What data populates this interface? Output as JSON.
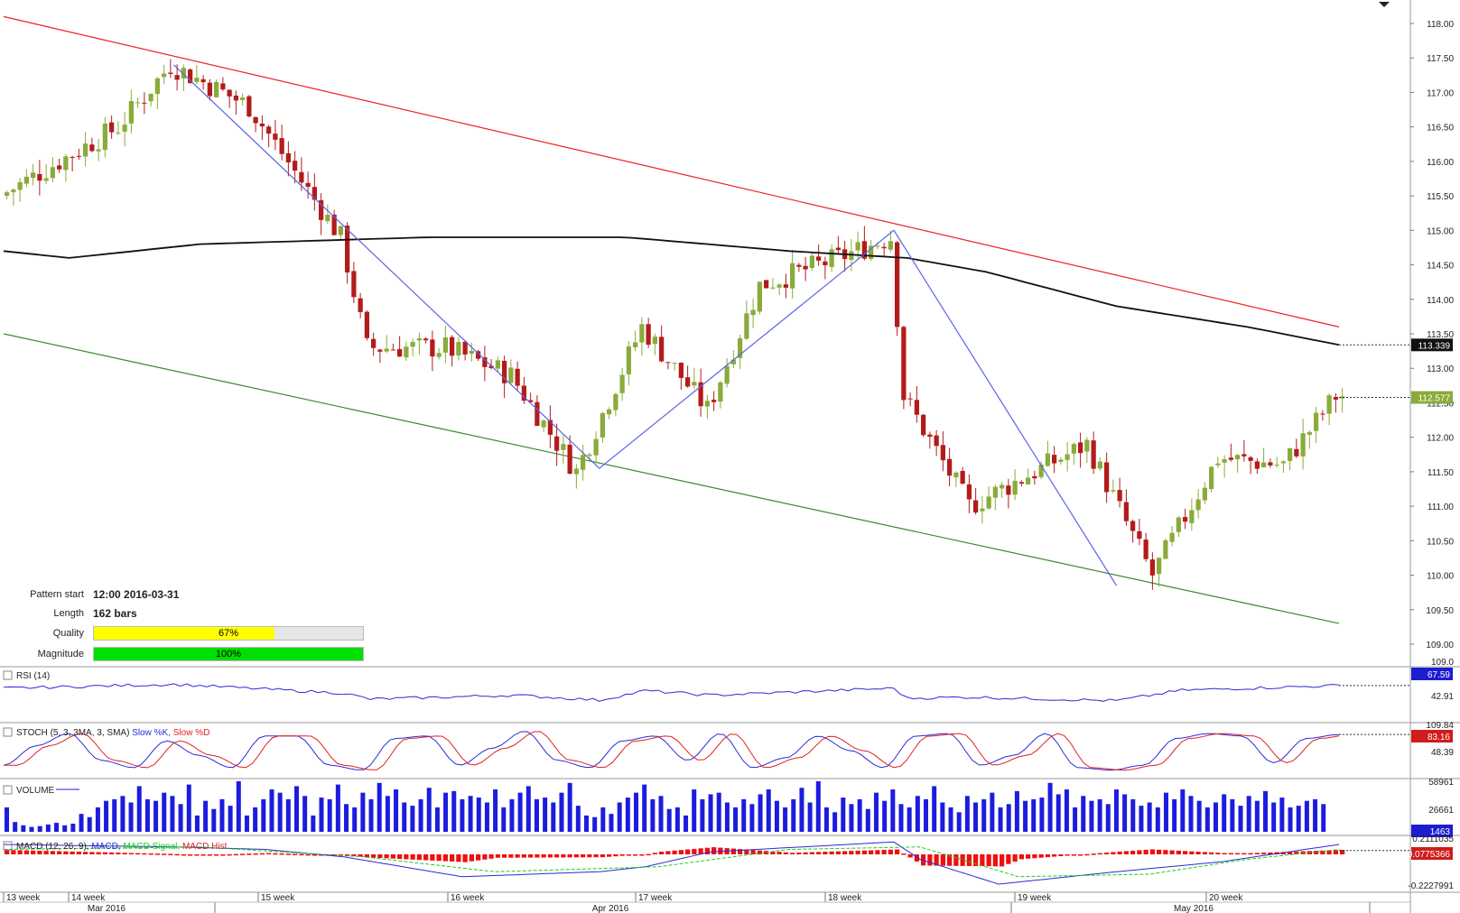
{
  "chart_data": {
    "type": "candlestick",
    "title": "",
    "main_panel": {
      "y_range": [
        109.0,
        118.2
      ],
      "y_ticks": [
        "118.00",
        "117.50",
        "117.00",
        "116.50",
        "116.00",
        "115.50",
        "115.00",
        "114.50",
        "114.00",
        "113.50",
        "113.00",
        "112.50",
        "112.00",
        "111.50",
        "111.00",
        "110.50",
        "110.00",
        "109.50",
        "109.00"
      ],
      "moving_average_last": "113.339",
      "last_price": "112.577",
      "colors": {
        "up": "#8aab3a",
        "down": "#b31b1b",
        "ma": "#111111",
        "resistance": "#ee2222",
        "support": "#3b8a2e",
        "pattern": "#5a64e6",
        "price_badge": "#8aab3a"
      },
      "price_path": [
        [
          0,
          115.5
        ],
        [
          18,
          116.5
        ],
        [
          26,
          117.4
        ],
        [
          38,
          116.8
        ],
        [
          52,
          114.9
        ],
        [
          56,
          113.3
        ],
        [
          68,
          113.3
        ],
        [
          78,
          112.9
        ],
        [
          88,
          111.5
        ],
        [
          98,
          113.6
        ],
        [
          108,
          112.4
        ],
        [
          116,
          114.2
        ],
        [
          128,
          114.6
        ],
        [
          136,
          114.9
        ],
        [
          138,
          112.6
        ],
        [
          148,
          111.0
        ],
        [
          156,
          111.4
        ],
        [
          166,
          111.9
        ],
        [
          176,
          110.0
        ],
        [
          186,
          111.7
        ],
        [
          196,
          111.6
        ],
        [
          204,
          112.6
        ]
      ],
      "moving_average": [
        [
          0,
          114.7
        ],
        [
          10,
          114.6
        ],
        [
          30,
          114.8
        ],
        [
          65,
          114.9
        ],
        [
          95,
          114.9
        ],
        [
          120,
          114.7
        ],
        [
          138,
          114.6
        ],
        [
          150,
          114.4
        ],
        [
          170,
          113.9
        ],
        [
          190,
          113.6
        ],
        [
          204,
          113.34
        ]
      ],
      "resistance_line": [
        [
          0,
          118.1
        ],
        [
          204,
          113.6
        ]
      ],
      "support_line": [
        [
          0,
          113.5
        ],
        [
          204,
          109.3
        ]
      ],
      "pattern_zigzag": [
        [
          26,
          117.4
        ],
        [
          91,
          111.55
        ],
        [
          136,
          115.0
        ],
        [
          170,
          109.85
        ]
      ]
    },
    "pattern_info": {
      "pattern_start_label": "Pattern start",
      "pattern_start_value": "12:00 2016-03-31",
      "length_label": "Length",
      "length_value": "162 bars",
      "quality_label": "Quality",
      "quality_value": "67%",
      "quality_fraction": 0.67,
      "magnitude_label": "Magnitude",
      "magnitude_value": "100%",
      "magnitude_fraction": 1.0
    },
    "rsi_panel": {
      "label": "RSI (14)",
      "ticks": [
        "109.0",
        "42.91"
      ],
      "last": "67.59",
      "values": [
        [
          0,
          62
        ],
        [
          26,
          70
        ],
        [
          52,
          52
        ],
        [
          56,
          40
        ],
        [
          78,
          48
        ],
        [
          91,
          38
        ],
        [
          98,
          57
        ],
        [
          108,
          48
        ],
        [
          136,
          62
        ],
        [
          138,
          42
        ],
        [
          148,
          44
        ],
        [
          170,
          37
        ],
        [
          180,
          58
        ],
        [
          204,
          67.59
        ]
      ]
    },
    "stoch_panel": {
      "label": "STOCH (5, 3, 3MA, 3, SMA)",
      "legend_k": "Slow %K",
      "legend_d": "Slow %D",
      "ticks": [
        "109.84",
        "48.39"
      ],
      "last": "83.16",
      "k_values": [
        20,
        60,
        85,
        30,
        15,
        70,
        40,
        15,
        80,
        80,
        20,
        10,
        75,
        80,
        20,
        55,
        90,
        30,
        15,
        70,
        80,
        30,
        85,
        15,
        35,
        80,
        50,
        15,
        80,
        85,
        20,
        40,
        85,
        15,
        10,
        20,
        75,
        85,
        80,
        25,
        75,
        83
      ]
    },
    "volume_panel": {
      "label": "VOLUME",
      "ticks": [
        "58961",
        "26661"
      ],
      "last": "1463",
      "values": [
        30,
        12,
        8,
        6,
        7,
        9,
        11,
        8,
        10,
        22,
        18,
        30,
        38,
        40,
        44,
        36,
        56,
        40,
        38,
        48,
        44,
        34,
        58,
        20,
        38,
        28,
        40,
        32,
        62,
        20,
        30,
        40,
        52,
        48,
        40,
        56,
        44,
        20,
        42,
        40,
        58,
        34,
        30,
        48,
        40,
        60,
        44,
        52,
        36,
        32,
        40,
        54,
        30,
        48,
        50,
        40,
        44,
        42,
        36,
        52,
        30,
        40,
        48,
        56,
        40,
        42,
        36,
        48,
        60,
        32,
        20,
        18,
        30,
        22,
        36,
        42,
        48,
        58,
        40,
        44,
        28,
        30,
        20,
        52,
        40,
        46,
        48,
        36,
        30,
        40,
        34,
        46,
        52,
        38,
        30,
        40,
        54,
        36,
        62,
        30,
        24,
        42,
        34,
        40,
        28,
        48,
        38,
        52,
        34,
        30,
        44,
        40,
        56,
        36,
        30,
        24,
        44,
        36,
        40,
        48,
        30,
        34,
        50,
        38,
        40,
        42,
        60,
        46,
        52,
        30,
        44,
        38,
        40,
        34,
        52,
        46,
        40,
        32,
        36,
        30,
        48,
        40,
        52,
        44,
        38,
        30,
        36,
        46,
        40,
        32,
        44,
        38,
        50,
        36,
        42,
        30,
        32,
        38,
        40,
        34
      ]
    },
    "macd_panel": {
      "label": "MACD (12, 26, 9)",
      "legend_macd": "MACD",
      "legend_signal": "MACD Signal",
      "legend_hist": "MACD Hist",
      "ticks": [
        "0.2111035",
        "-0.2227991"
      ],
      "last": "0.0775366",
      "macd": [
        [
          0,
          0.2
        ],
        [
          26,
          0.15
        ],
        [
          40,
          0.1
        ],
        [
          52,
          -0.05
        ],
        [
          70,
          -0.45
        ],
        [
          91,
          -0.35
        ],
        [
          98,
          -0.25
        ],
        [
          108,
          0.05
        ],
        [
          136,
          0.25
        ],
        [
          140,
          -0.1
        ],
        [
          152,
          -0.6
        ],
        [
          170,
          -0.35
        ],
        [
          186,
          -0.15
        ],
        [
          204,
          0.2
        ]
      ],
      "signal": [
        [
          0,
          0.1
        ],
        [
          30,
          0.15
        ],
        [
          55,
          -0.05
        ],
        [
          75,
          -0.35
        ],
        [
          100,
          -0.25
        ],
        [
          120,
          0.1
        ],
        [
          140,
          0.15
        ],
        [
          155,
          -0.45
        ],
        [
          175,
          -0.4
        ],
        [
          190,
          -0.1
        ],
        [
          204,
          0.1
        ]
      ]
    },
    "x_axis": {
      "week_labels": [
        "13 week",
        "14 week",
        "15 week",
        "16 week",
        "17 week",
        "18 week",
        "19 week",
        "20 week"
      ],
      "month_labels": [
        "Mar 2016",
        "Apr 2016",
        "May 2016"
      ]
    }
  }
}
